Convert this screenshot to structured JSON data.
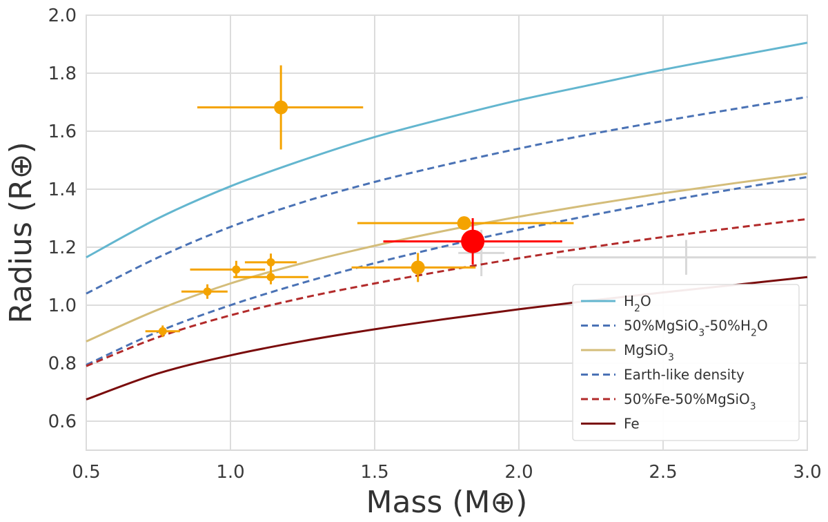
{
  "chart_data": {
    "type": "scatter",
    "xlabel": "Mass (M⊕)",
    "ylabel": "Radius (R⊕)",
    "xlim": [
      0.5,
      3.0
    ],
    "ylim": [
      0.5,
      2.0
    ],
    "xticks": [
      0.5,
      1.0,
      1.5,
      2.0,
      2.5,
      3.0
    ],
    "xtick_labels": [
      "0.5",
      "1.0",
      "1.5",
      "2.0",
      "2.5",
      "3.0"
    ],
    "yticks": [
      0.6,
      0.8,
      1.0,
      1.2,
      1.4,
      1.6,
      1.8,
      2.0
    ],
    "ytick_labels": [
      "0.6",
      "0.8",
      "1.0",
      "1.2",
      "1.4",
      "1.6",
      "1.8",
      "2.0"
    ],
    "grid": true,
    "legend_position": "lower-right",
    "curves": [
      {
        "name": "H2O",
        "legend": [
          "H",
          "2",
          "O"
        ],
        "color": "#63b6cf",
        "dash": false,
        "x": [
          0.5,
          0.75,
          1.0,
          1.25,
          1.5,
          1.75,
          2.0,
          2.25,
          2.5,
          2.75,
          3.0
        ],
        "y": [
          1.165,
          1.3,
          1.41,
          1.5,
          1.58,
          1.646,
          1.707,
          1.76,
          1.812,
          1.859,
          1.905
        ]
      },
      {
        "name": "50%MgSiO3-50%H2O",
        "legend": [
          "50%MgSiO",
          "3",
          "-50%H",
          "2",
          "O"
        ],
        "color": "#4a72b5",
        "dash": true,
        "x": [
          0.5,
          0.75,
          1.0,
          1.25,
          1.5,
          1.75,
          2.0,
          2.25,
          2.5,
          2.75,
          3.0
        ],
        "y": [
          1.04,
          1.165,
          1.27,
          1.355,
          1.425,
          1.485,
          1.54,
          1.59,
          1.635,
          1.677,
          1.718
        ]
      },
      {
        "name": "MgSiO3",
        "legend": [
          "MgSiO",
          "3"
        ],
        "color": "#d4bd7a",
        "dash": false,
        "x": [
          0.5,
          0.75,
          1.0,
          1.25,
          1.5,
          1.75,
          2.0,
          2.25,
          2.5,
          2.75,
          3.0
        ],
        "y": [
          0.875,
          0.985,
          1.075,
          1.145,
          1.205,
          1.258,
          1.305,
          1.347,
          1.386,
          1.421,
          1.454
        ]
      },
      {
        "name": "Earth-like density",
        "legend": [
          "Earth-like density"
        ],
        "color": "#4a72b5",
        "dash": true,
        "x": [
          0.5,
          0.75,
          1.0,
          1.25,
          1.5,
          1.75,
          2.0,
          2.25,
          2.5,
          2.75,
          3.0
        ],
        "y": [
          0.794,
          0.909,
          1.0,
          1.077,
          1.145,
          1.205,
          1.26,
          1.31,
          1.357,
          1.401,
          1.442
        ]
      },
      {
        "name": "50%Fe-50%MgSiO3",
        "legend": [
          "50%Fe-50%MgSiO",
          "3"
        ],
        "color": "#b22a2a",
        "dash": true,
        "x": [
          0.5,
          0.75,
          1.0,
          1.25,
          1.5,
          1.75,
          2.0,
          2.25,
          2.5,
          2.75,
          3.0
        ],
        "y": [
          0.79,
          0.89,
          0.965,
          1.025,
          1.075,
          1.12,
          1.162,
          1.2,
          1.235,
          1.267,
          1.297
        ]
      },
      {
        "name": "Fe",
        "legend": [
          "Fe"
        ],
        "color": "#7a0c0c",
        "dash": false,
        "x": [
          0.5,
          0.75,
          1.0,
          1.25,
          1.5,
          1.75,
          2.0,
          2.25,
          2.5,
          2.75,
          3.0
        ],
        "y": [
          0.675,
          0.765,
          0.827,
          0.876,
          0.917,
          0.953,
          0.986,
          1.016,
          1.044,
          1.07,
          1.097
        ]
      }
    ],
    "background_points": [
      {
        "x": 1.87,
        "y": 1.18,
        "xerr": 0.08,
        "yerr": 0.08
      },
      {
        "x": 2.58,
        "y": 1.165,
        "xerr": 0.45,
        "yerr": 0.06
      }
    ],
    "points": [
      {
        "x": 1.175,
        "y": 1.682,
        "xerr_low": 0.29,
        "xerr_high": 0.285,
        "yerr_low": 0.145,
        "yerr_high": 0.145,
        "size": "medium",
        "color": "#f4a300"
      },
      {
        "x": 0.765,
        "y": 0.91,
        "xerr_low": 0.06,
        "xerr_high": 0.06,
        "yerr_low": 0.02,
        "yerr_high": 0.02,
        "size": "small",
        "color": "#f4a300"
      },
      {
        "x": 0.92,
        "y": 1.047,
        "xerr_low": 0.09,
        "xerr_high": 0.07,
        "yerr_low": 0.025,
        "yerr_high": 0.025,
        "size": "small",
        "color": "#f4a300"
      },
      {
        "x": 1.02,
        "y": 1.123,
        "xerr_low": 0.16,
        "xerr_high": 0.1,
        "yerr_low": 0.03,
        "yerr_high": 0.03,
        "size": "small",
        "color": "#f4a300"
      },
      {
        "x": 1.14,
        "y": 1.148,
        "xerr_low": 0.09,
        "xerr_high": 0.09,
        "yerr_low": 0.03,
        "yerr_high": 0.03,
        "size": "small",
        "color": "#f4a300"
      },
      {
        "x": 1.14,
        "y": 1.097,
        "xerr_low": 0.13,
        "xerr_high": 0.13,
        "yerr_low": 0.025,
        "yerr_high": 0.025,
        "size": "small",
        "color": "#f4a300"
      },
      {
        "x": 1.65,
        "y": 1.13,
        "xerr_low": 0.23,
        "xerr_high": 0.2,
        "yerr_low": 0.05,
        "yerr_high": 0.05,
        "size": "medium",
        "color": "#f4a300"
      },
      {
        "x": 1.81,
        "y": 1.283,
        "xerr_low": 0.37,
        "xerr_high": 0.38,
        "yerr_low": 0.01,
        "yerr_high": 0.01,
        "size": "medium",
        "color": "#f4a300"
      },
      {
        "x": 1.84,
        "y": 1.22,
        "xerr_low": 0.31,
        "xerr_high": 0.31,
        "yerr_low": 0.08,
        "yerr_high": 0.08,
        "size": "large",
        "color": "#ff0000"
      }
    ]
  }
}
